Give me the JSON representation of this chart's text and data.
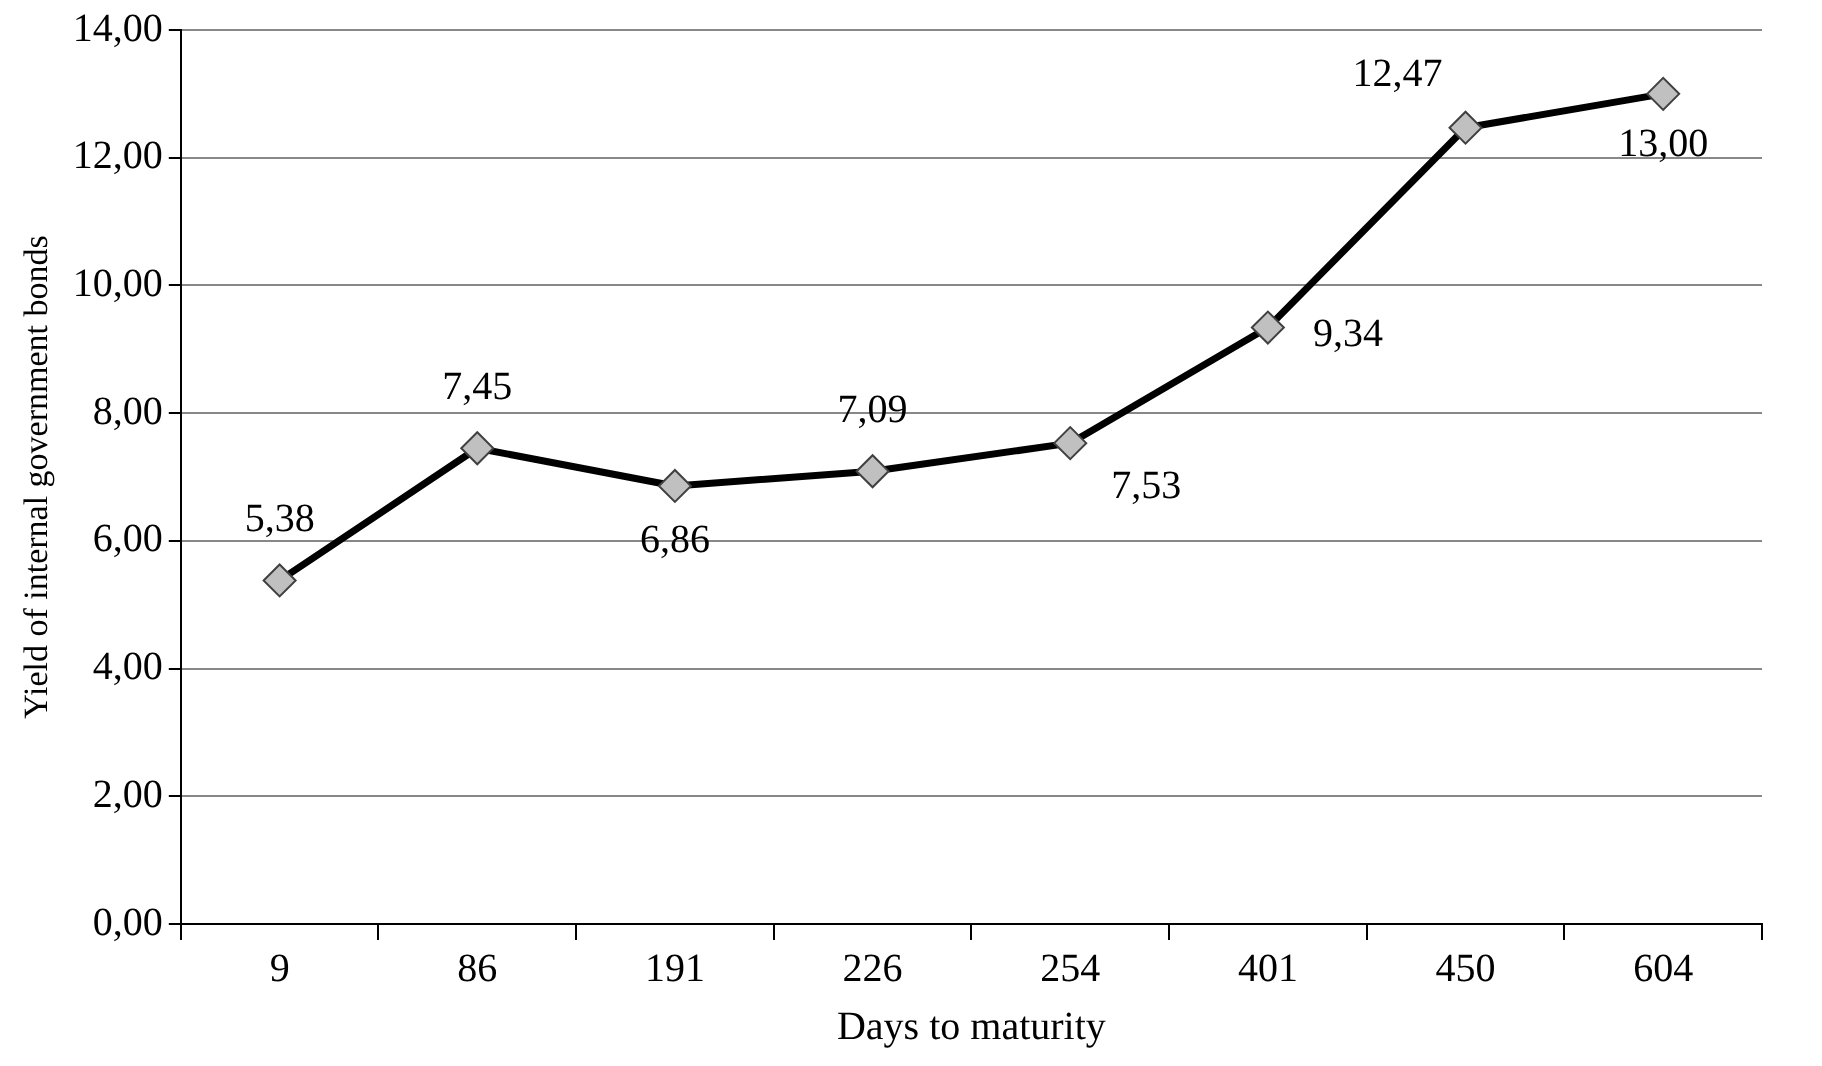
{
  "chart_data": {
    "type": "line",
    "xlabel": "Days to maturity",
    "ylabel": "Yield of internal government bonds",
    "categories": [
      "9",
      "86",
      "191",
      "226",
      "254",
      "401",
      "450",
      "604"
    ],
    "series": [
      {
        "color": "#000000",
        "values": [
          5.38,
          7.45,
          6.86,
          7.09,
          7.53,
          9.34,
          12.47,
          13.0
        ],
        "value_labels": [
          "5,38",
          "7,45",
          "6,86",
          "7,09",
          "7,53",
          "9,34",
          "12,47",
          "13,00"
        ]
      }
    ],
    "ylim": [
      0,
      14
    ],
    "yticks": [
      {
        "value": 0,
        "label": "0,00"
      },
      {
        "value": 2,
        "label": "2,00"
      },
      {
        "value": 4,
        "label": "4,00"
      },
      {
        "value": 6,
        "label": "6,00"
      },
      {
        "value": 8,
        "label": "8,00"
      },
      {
        "value": 10,
        "label": "10,00"
      },
      {
        "value": 12,
        "label": "12,00"
      },
      {
        "value": 14,
        "label": "14,00"
      }
    ],
    "grid": "y",
    "legend": false,
    "marker": "diamond",
    "line_style": "solid"
  }
}
